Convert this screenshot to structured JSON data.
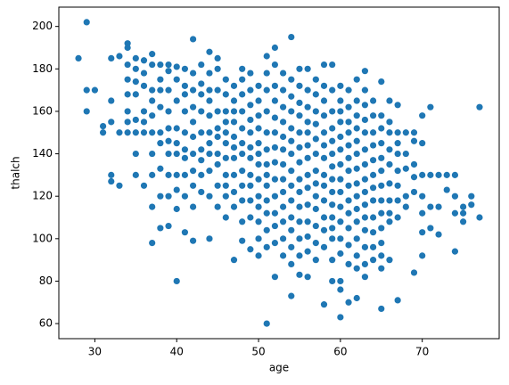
{
  "chart_data": {
    "type": "scatter",
    "xlabel": "age",
    "ylabel": "thalch",
    "color": "#1f77b4",
    "xlim": [
      25.6,
      79.4
    ],
    "xticks": [
      30,
      40,
      50,
      60,
      70
    ],
    "ylim": [
      52.9,
      209.1
    ],
    "yticks": [
      60,
      80,
      100,
      120,
      140,
      160,
      180,
      200
    ],
    "x": [
      28,
      29,
      29,
      29,
      30,
      31,
      31,
      32,
      32,
      32,
      32,
      32,
      33,
      33,
      33,
      34,
      34,
      34,
      34,
      34,
      34,
      34,
      34,
      35,
      35,
      35,
      35,
      35,
      35,
      35,
      35,
      36,
      36,
      36,
      36,
      36,
      36,
      36,
      37,
      37,
      37,
      37,
      37,
      37,
      37,
      37,
      37,
      37,
      38,
      38,
      38,
      38,
      38,
      38,
      38,
      38,
      38,
      39,
      39,
      39,
      39,
      39,
      39,
      39,
      39,
      39,
      39,
      40,
      40,
      40,
      40,
      40,
      40,
      40,
      40,
      40,
      40,
      41,
      41,
      41,
      41,
      41,
      41,
      41,
      41,
      41,
      41,
      42,
      42,
      42,
      42,
      42,
      42,
      42,
      42,
      42,
      42,
      42,
      43,
      43,
      43,
      43,
      43,
      43,
      43,
      43,
      43,
      44,
      44,
      44,
      44,
      44,
      44,
      44,
      44,
      44,
      44,
      44,
      45,
      45,
      45,
      45,
      45,
      45,
      45,
      45,
      45,
      45,
      46,
      46,
      46,
      46,
      46,
      46,
      46,
      46,
      46,
      46,
      46,
      47,
      47,
      47,
      47,
      47,
      47,
      47,
      47,
      47,
      47,
      47,
      48,
      48,
      48,
      48,
      48,
      48,
      48,
      48,
      48,
      48,
      48,
      48,
      49,
      49,
      49,
      49,
      49,
      49,
      49,
      49,
      49,
      49,
      49,
      49,
      50,
      50,
      50,
      50,
      50,
      50,
      50,
      50,
      50,
      50,
      50,
      50,
      50,
      51,
      51,
      51,
      51,
      51,
      51,
      51,
      51,
      51,
      51,
      51,
      51,
      51,
      51,
      52,
      52,
      52,
      52,
      52,
      52,
      52,
      52,
      52,
      52,
      52,
      52,
      52,
      52,
      53,
      53,
      53,
      53,
      53,
      53,
      53,
      53,
      53,
      53,
      53,
      53,
      53,
      54,
      54,
      54,
      54,
      54,
      54,
      54,
      54,
      54,
      54,
      54,
      54,
      54,
      54,
      54,
      55,
      55,
      55,
      55,
      55,
      55,
      55,
      55,
      55,
      55,
      55,
      55,
      55,
      55,
      56,
      56,
      56,
      56,
      56,
      56,
      56,
      56,
      56,
      56,
      56,
      56,
      56,
      56,
      57,
      57,
      57,
      57,
      57,
      57,
      57,
      57,
      57,
      57,
      57,
      57,
      57,
      58,
      58,
      58,
      58,
      58,
      58,
      58,
      58,
      58,
      58,
      58,
      58,
      58,
      58,
      59,
      59,
      59,
      59,
      59,
      59,
      59,
      59,
      59,
      59,
      59,
      59,
      59,
      59,
      59,
      60,
      60,
      60,
      60,
      60,
      60,
      60,
      60,
      60,
      60,
      60,
      60,
      60,
      60,
      60,
      60,
      61,
      61,
      61,
      61,
      61,
      61,
      61,
      61,
      61,
      61,
      61,
      61,
      61,
      61,
      62,
      62,
      62,
      62,
      62,
      62,
      62,
      62,
      62,
      62,
      62,
      62,
      62,
      62,
      62,
      63,
      63,
      63,
      63,
      63,
      63,
      63,
      63,
      63,
      63,
      63,
      63,
      63,
      63,
      63,
      64,
      64,
      64,
      64,
      64,
      64,
      64,
      64,
      64,
      64,
      64,
      64,
      65,
      65,
      65,
      65,
      65,
      65,
      65,
      65,
      65,
      65,
      65,
      65,
      65,
      65,
      66,
      66,
      66,
      66,
      66,
      66,
      66,
      66,
      66,
      66,
      67,
      67,
      67,
      67,
      67,
      67,
      67,
      67,
      67,
      68,
      68,
      68,
      68,
      68,
      69,
      69,
      69,
      69,
      69,
      69,
      70,
      70,
      70,
      70,
      70,
      70,
      70,
      71,
      71,
      71,
      71,
      72,
      72,
      72,
      73,
      73,
      74,
      74,
      74,
      74,
      75,
      75,
      75,
      76,
      76,
      77,
      77
    ],
    "values": [
      185,
      202,
      170,
      160,
      170,
      150,
      153,
      185,
      165,
      155,
      130,
      127,
      186,
      150,
      125,
      192,
      190,
      182,
      175,
      168,
      160,
      155,
      150,
      185,
      180,
      174,
      168,
      156,
      150,
      140,
      130,
      184,
      178,
      172,
      160,
      155,
      150,
      125,
      187,
      182,
      170,
      165,
      158,
      150,
      140,
      130,
      115,
      98,
      182,
      175,
      170,
      162,
      150,
      145,
      133,
      120,
      105,
      182,
      179,
      170,
      160,
      152,
      146,
      140,
      130,
      120,
      106,
      181,
      175,
      165,
      152,
      145,
      140,
      130,
      123,
      114,
      80,
      180,
      172,
      168,
      160,
      150,
      142,
      138,
      130,
      120,
      103,
      194,
      178,
      170,
      162,
      155,
      148,
      140,
      132,
      125,
      115,
      99,
      182,
      173,
      168,
      160,
      150,
      142,
      137,
      130,
      122,
      188,
      178,
      170,
      165,
      158,
      150,
      145,
      140,
      132,
      120,
      100,
      185,
      180,
      170,
      160,
      152,
      148,
      140,
      135,
      125,
      115,
      175,
      168,
      160,
      155,
      150,
      145,
      138,
      130,
      125,
      120,
      110,
      172,
      165,
      160,
      155,
      148,
      143,
      138,
      130,
      122,
      115,
      90,
      180,
      175,
      168,
      160,
      152,
      145,
      140,
      132,
      125,
      118,
      108,
      99,
      178,
      170,
      163,
      156,
      150,
      143,
      138,
      130,
      125,
      118,
      110,
      95,
      172,
      165,
      158,
      152,
      145,
      140,
      135,
      128,
      120,
      115,
      108,
      100,
      92,
      186,
      178,
      170,
      160,
      150,
      142,
      135,
      130,
      125,
      118,
      112,
      104,
      96,
      60,
      190,
      182,
      172,
      165,
      157,
      150,
      143,
      136,
      128,
      120,
      112,
      106,
      98,
      82,
      178,
      170,
      162,
      155,
      148,
      142,
      135,
      128,
      122,
      115,
      108,
      100,
      92,
      195,
      175,
      167,
      160,
      152,
      146,
      140,
      132,
      125,
      118,
      110,
      104,
      96,
      88,
      73,
      180,
      172,
      164,
      158,
      150,
      143,
      136,
      128,
      122,
      115,
      108,
      100,
      92,
      83,
      180,
      170,
      162,
      155,
      150,
      144,
      138,
      130,
      124,
      116,
      108,
      101,
      94,
      82,
      175,
      168,
      160,
      154,
      147,
      140,
      132,
      126,
      120,
      114,
      106,
      98,
      90,
      182,
      172,
      165,
      158,
      150,
      144,
      138,
      130,
      125,
      118,
      110,
      104,
      96,
      69,
      182,
      170,
      160,
      152,
      146,
      140,
      134,
      128,
      122,
      116,
      110,
      105,
      100,
      90,
      80,
      172,
      165,
      160,
      155,
      148,
      142,
      135,
      128,
      122,
      115,
      108,
      100,
      93,
      80,
      76,
      63,
      170,
      162,
      155,
      150,
      144,
      138,
      132,
      125,
      118,
      112,
      105,
      97,
      88,
      70,
      175,
      165,
      158,
      152,
      146,
      140,
      133,
      126,
      120,
      114,
      108,
      100,
      92,
      86,
      72,
      179,
      170,
      163,
      156,
      150,
      142,
      135,
      128,
      122,
      116,
      110,
      104,
      96,
      88,
      82,
      165,
      158,
      150,
      144,
      137,
      130,
      124,
      118,
      110,
      103,
      96,
      90,
      174,
      158,
      152,
      145,
      138,
      132,
      125,
      118,
      112,
      105,
      98,
      92,
      86,
      67,
      165,
      155,
      150,
      142,
      135,
      126,
      118,
      112,
      108,
      90,
      163,
      150,
      145,
      140,
      132,
      125,
      118,
      110,
      71,
      150,
      140,
      133,
      120,
      115,
      150,
      146,
      135,
      129,
      122,
      84,
      158,
      145,
      130,
      120,
      112,
      103,
      92,
      162,
      130,
      115,
      105,
      130,
      115,
      102,
      130,
      123,
      130,
      120,
      112,
      94,
      115,
      108,
      112,
      120,
      116,
      162,
      110
    ]
  }
}
